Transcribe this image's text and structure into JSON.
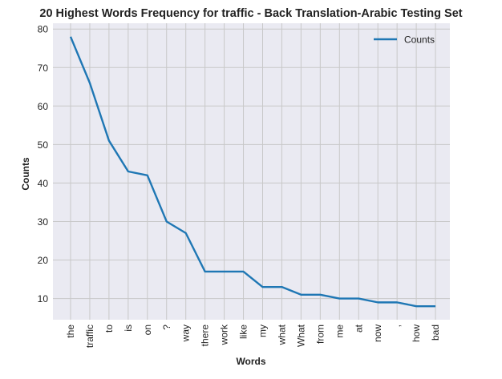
{
  "chart_data": {
    "type": "line",
    "title": "20 Highest Words Frequency for traffic - Back Translation-Arabic Testing Set",
    "xlabel": "Words",
    "ylabel": "Counts",
    "categories": [
      "the",
      "traffic",
      "to",
      "is",
      "on",
      "?",
      "way",
      "there",
      "work",
      "like",
      "my",
      "what",
      "What",
      "from",
      "me",
      "at",
      "now",
      ",",
      "how",
      "bad"
    ],
    "series": [
      {
        "name": "Counts",
        "values": [
          78,
          66,
          51,
          43,
          42,
          30,
          27,
          17,
          17,
          17,
          13,
          13,
          11,
          11,
          10,
          10,
          9,
          9,
          8,
          8
        ]
      }
    ],
    "ylim": [
      4.5,
      81.5
    ],
    "yticks": [
      10,
      20,
      30,
      40,
      50,
      60,
      70,
      80
    ],
    "grid": true,
    "legend": "top-right",
    "colors": {
      "line": "#1f77b4",
      "plot_bg": "#eaeaf2",
      "grid": "#c8c8c8"
    }
  }
}
